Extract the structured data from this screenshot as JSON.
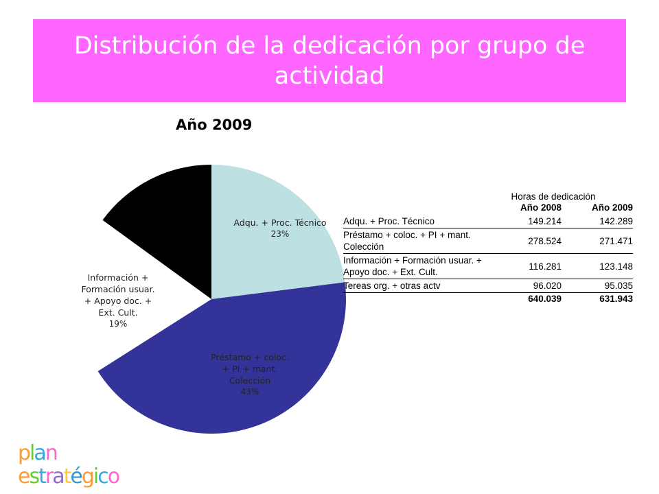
{
  "slide_title": "Distribución de la dedicación por grupo de actividad",
  "chart_data": {
    "type": "pie",
    "title": "Año 2009",
    "slices": [
      {
        "label": "Adqu. + Proc. Técnico",
        "percent": "23%",
        "value": 23,
        "color": "#bde0e2"
      },
      {
        "label": "Préstamo + coloc. + PI + mant. Colección",
        "percent": "43%",
        "value": 43,
        "color": "#333399"
      },
      {
        "label": "Información + Formación usuar. + Apoyo doc. + Ext. Cult.",
        "percent": "19%",
        "value": 19,
        "color": "#ffffff"
      },
      {
        "label": "",
        "percent": "",
        "value": 15,
        "color": "#000000"
      }
    ]
  },
  "table": {
    "caption": "Horas de dedicación",
    "columns": [
      "",
      "Año 2008",
      "Año 2009"
    ],
    "rows": [
      {
        "label": "Adqu. + Proc. Técnico",
        "v2008": "149.214",
        "v2009": "142.289"
      },
      {
        "label": "Préstamo + coloc. + PI + mant. Colección",
        "v2008": "278.524",
        "v2009": "271.471"
      },
      {
        "label": "Información + Formación usuar. + Apoyo doc. + Ext. Cult.",
        "v2008": "116.281",
        "v2009": "123.148"
      },
      {
        "label": "Tereas org. + otras actv",
        "v2008": "96.020",
        "v2009": "95.035"
      }
    ],
    "totals": {
      "v2008": "640.039",
      "v2009": "631.943"
    }
  },
  "logo": {
    "line1": "plan",
    "line2": "estratégico",
    "colors": [
      "#ff9933",
      "#66cc33",
      "#33a9e0",
      "#ff66cc",
      "#9966cc",
      "#ffcc33",
      "#3399cc"
    ]
  }
}
